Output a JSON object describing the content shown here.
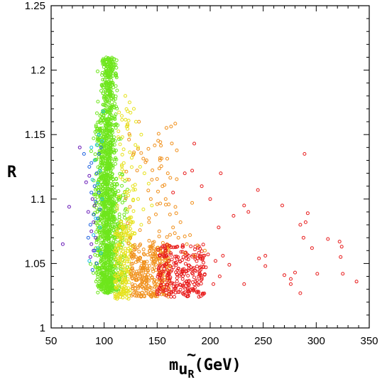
{
  "chart_data": {
    "type": "scatter",
    "title": "",
    "xlabel": {
      "base": "m",
      "tilde": "~",
      "particle": "u",
      "subscript": "R",
      "unit": "(GeV)"
    },
    "ylabel": "R",
    "xlim": [
      50,
      350
    ],
    "ylim": [
      1,
      1.25
    ],
    "xticks": [
      50,
      100,
      150,
      200,
      250,
      300,
      350
    ],
    "yticks": [
      1,
      1.05,
      1.1,
      1.15,
      1.2,
      1.25
    ],
    "xtick_labels": [
      "50",
      "100",
      "150",
      "200",
      "250",
      "300",
      "350"
    ],
    "ytick_labels": [
      "1",
      "1.05",
      "1.1",
      "1.15",
      "1.2",
      "1.25"
    ],
    "grid": false,
    "colors": {
      "purple": "#6a1cb8",
      "blue": "#1e62e0",
      "cyan": "#1cc0e8",
      "green": "#6ee61c",
      "yellow": "#e6e21c",
      "orange": "#f0901c",
      "red": "#e81c1c"
    },
    "series": [
      {
        "color": "purple",
        "points": [
          [
            61,
            1.065
          ],
          [
            67,
            1.094
          ],
          [
            77,
            1.14
          ],
          [
            83,
            1.113
          ],
          [
            85,
            1.09
          ],
          [
            86,
            1.118
          ],
          [
            87,
            1.055
          ],
          [
            88,
            1.075
          ],
          [
            88,
            1.065
          ],
          [
            89,
            1.1
          ],
          [
            90,
            1.06
          ],
          [
            90,
            1.082
          ],
          [
            91,
            1.095
          ],
          [
            92,
            1.07
          ]
        ]
      },
      {
        "color": "blue",
        "points": [
          [
            81,
            1.135
          ],
          [
            85,
            1.07
          ],
          [
            86,
            1.125
          ],
          [
            87,
            1.08
          ],
          [
            88,
            1.105
          ],
          [
            88,
            1.128
          ],
          [
            89,
            1.045
          ],
          [
            90,
            1.088
          ],
          [
            91,
            1.11
          ],
          [
            91,
            1.06
          ],
          [
            92,
            1.098
          ],
          [
            93,
            1.12
          ],
          [
            93,
            1.05
          ],
          [
            94,
            1.085
          ],
          [
            95,
            1.135
          ],
          [
            95,
            1.105
          ],
          [
            96,
            1.092
          ],
          [
            97,
            1.14
          ]
        ]
      },
      {
        "color": "cyan",
        "points": [
          [
            86,
            1.052
          ],
          [
            88,
            1.14
          ],
          [
            89,
            1.115
          ],
          [
            90,
            1.072
          ],
          [
            91,
            1.13
          ],
          [
            92,
            1.085
          ],
          [
            93,
            1.142
          ],
          [
            94,
            1.062
          ],
          [
            94,
            1.112
          ],
          [
            95,
            1.15
          ],
          [
            96,
            1.078
          ],
          [
            96,
            1.122
          ],
          [
            97,
            1.058
          ],
          [
            98,
            1.1
          ],
          [
            98,
            1.145
          ],
          [
            99,
            1.168
          ]
        ]
      }
    ],
    "dense_clusters": [
      {
        "color": "green",
        "count": 1100,
        "x_center": 104,
        "x_spread": 5,
        "y_range": [
          1.027,
          1.21
        ]
      },
      {
        "color": "green",
        "count": 250,
        "x_center": 96,
        "x_spread": 4,
        "y_range": [
          1.03,
          1.16
        ]
      },
      {
        "color": "green",
        "count": 120,
        "x_center": 114,
        "x_spread": 5,
        "y_range": [
          1.03,
          1.12
        ]
      },
      {
        "color": "yellow",
        "count": 170,
        "x_range": [
          110,
          125
        ],
        "y_range": [
          1.022,
          1.08
        ]
      },
      {
        "color": "yellow",
        "count": 70,
        "x_range": [
          112,
          130
        ],
        "y_range": [
          1.06,
          1.17
        ]
      },
      {
        "color": "orange",
        "count": 300,
        "x_range": [
          125,
          162
        ],
        "y_range": [
          1.024,
          1.065
        ]
      },
      {
        "color": "orange",
        "count": 60,
        "x_range": [
          120,
          170
        ],
        "y_range": [
          1.06,
          1.16
        ]
      },
      {
        "color": "red",
        "count": 260,
        "x_range": [
          150,
          195
        ],
        "y_range": [
          1.024,
          1.065
        ]
      }
    ],
    "sparse_points": [
      {
        "color": "red",
        "points": [
          [
            185,
            1.143
          ],
          [
            183,
            1.122
          ],
          [
            176,
            1.12
          ],
          [
            192,
            1.11
          ],
          [
            200,
            1.1
          ],
          [
            210,
            1.12
          ],
          [
            165,
            1.105
          ],
          [
            208,
            1.078
          ],
          [
            222,
            1.087
          ],
          [
            232,
            1.095
          ],
          [
            236,
            1.09
          ],
          [
            245,
            1.107
          ],
          [
            268,
            1.095
          ],
          [
            289,
            1.135
          ],
          [
            292,
            1.089
          ],
          [
            290,
            1.082
          ],
          [
            285,
            1.08
          ],
          [
            288,
            1.07
          ],
          [
            296,
            1.062
          ],
          [
            311,
            1.069
          ],
          [
            322,
            1.067
          ],
          [
            324,
            1.063
          ],
          [
            323,
            1.055
          ],
          [
            246,
            1.054
          ],
          [
            252,
            1.056
          ],
          [
            252,
            1.048
          ],
          [
            232,
            1.034
          ],
          [
            270,
            1.041
          ],
          [
            276,
            1.038
          ],
          [
            276,
            1.034
          ],
          [
            280,
            1.043
          ],
          [
            285,
            1.027
          ],
          [
            301,
            1.042
          ],
          [
            325,
            1.042
          ],
          [
            338,
            1.036
          ],
          [
            209,
            1.04
          ],
          [
            212,
            1.056
          ],
          [
            218,
            1.049
          ],
          [
            198,
            1.057
          ],
          [
            205,
            1.052
          ],
          [
            196,
            1.047
          ],
          [
            203,
            1.034
          ],
          [
            190,
            1.041
          ]
        ]
      },
      {
        "color": "orange",
        "points": [
          [
            160,
            1.12
          ],
          [
            158,
            1.1
          ],
          [
            162,
            1.088
          ],
          [
            165,
            1.078
          ],
          [
            172,
            1.082
          ],
          [
            170,
            1.07
          ],
          [
            176,
            1.071
          ],
          [
            178,
            1.065
          ],
          [
            181,
            1.072
          ],
          [
            188,
            1.064
          ],
          [
            183,
            1.097
          ],
          [
            168,
            1.089
          ],
          [
            155,
            1.11
          ],
          [
            150,
            1.096
          ],
          [
            145,
            1.115
          ],
          [
            140,
            1.13
          ],
          [
            144,
            1.1
          ],
          [
            152,
            1.075
          ],
          [
            176,
            1.058
          ],
          [
            195,
            1.06
          ],
          [
            185,
            1.056
          ]
        ]
      },
      {
        "color": "yellow",
        "points": [
          [
            120,
            1.18
          ],
          [
            124,
            1.175
          ],
          [
            128,
            1.17
          ],
          [
            122,
            1.158
          ],
          [
            130,
            1.16
          ],
          [
            135,
            1.15
          ],
          [
            132,
            1.14
          ],
          [
            126,
            1.132
          ],
          [
            134,
            1.125
          ],
          [
            138,
            1.12
          ],
          [
            127,
            1.11
          ],
          [
            142,
            1.112
          ],
          [
            145,
            1.095
          ],
          [
            135,
            1.08
          ],
          [
            132,
            1.1
          ],
          [
            137,
            1.092
          ]
        ]
      }
    ]
  }
}
